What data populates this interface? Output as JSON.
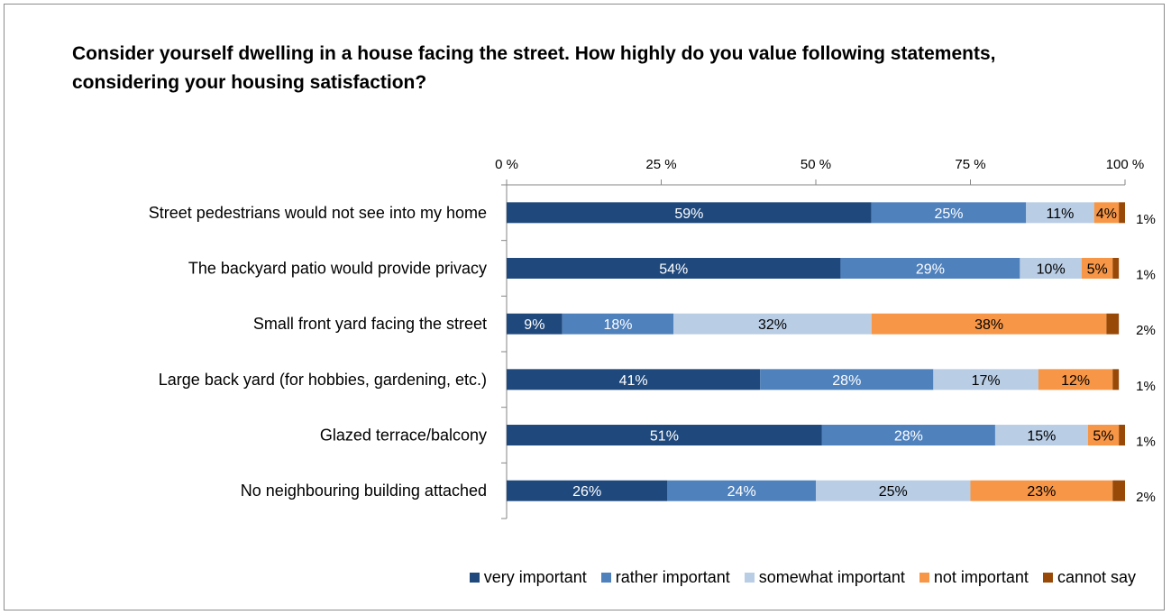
{
  "chart_data": {
    "type": "bar",
    "orientation": "horizontal",
    "stacked": true,
    "title": "Consider yourself dwelling in a house facing the street. How highly do you value following statements,  considering your housing satisfaction?",
    "xlim": [
      0,
      100
    ],
    "x_ticks": [
      "0 %",
      "25 %",
      "50 %",
      "75 %",
      "100 %"
    ],
    "x_tick_values": [
      0,
      25,
      50,
      75,
      100
    ],
    "categories": [
      "Street pedestrians would not see into my home",
      "The backyard patio would provide privacy",
      "Small front yard facing the street",
      "Large back yard (for hobbies, gardening, etc.)",
      "Glazed terrace/balcony",
      "No neighbouring building attached"
    ],
    "series": [
      {
        "name": "very important",
        "color": "#1f497d",
        "label_color": "#ffffff",
        "values": [
          59,
          54,
          9,
          41,
          51,
          26
        ],
        "labels": [
          "59%",
          "54%",
          "9%",
          "41%",
          "51%",
          "26%"
        ]
      },
      {
        "name": "rather important",
        "color": "#4f81bd",
        "label_color": "#ffffff",
        "values": [
          25,
          29,
          18,
          28,
          28,
          24
        ],
        "labels": [
          "25%",
          "29%",
          "18%",
          "28%",
          "28%",
          "24%"
        ]
      },
      {
        "name": "somewhat important",
        "color": "#b9cde5",
        "label_color": "#000000",
        "values": [
          11,
          10,
          32,
          17,
          15,
          25
        ],
        "labels": [
          "11%",
          "10%",
          "32%",
          "17%",
          "15%",
          "25%"
        ]
      },
      {
        "name": "not important",
        "color": "#f79646",
        "label_color": "#000000",
        "values": [
          4,
          5,
          38,
          12,
          5,
          23
        ],
        "labels": [
          "4%",
          "5%",
          "38%",
          "12%",
          "5%",
          "23%"
        ]
      },
      {
        "name": "cannot say",
        "color": "#984807",
        "label_color": "#000000",
        "values": [
          1,
          1,
          2,
          1,
          1,
          2
        ],
        "labels": [
          "1%",
          "1%",
          "2%",
          "1%",
          "1%",
          "2%"
        ]
      }
    ],
    "legend_position": "bottom",
    "grid": false
  }
}
